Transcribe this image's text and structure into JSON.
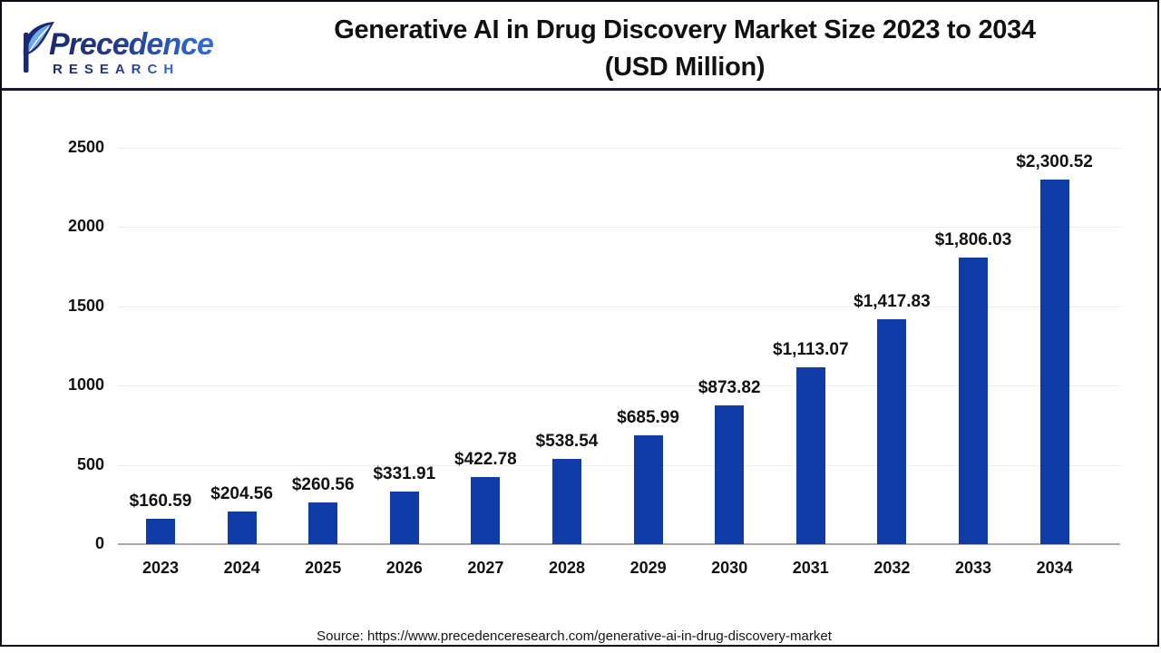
{
  "header": {
    "logo": {
      "wordmark": "Precedence",
      "subtext": "RESEARCH",
      "navy": "#1b2a6e",
      "blue": "#2f6fe0",
      "leaf_light_blue": "#6ea8f7"
    },
    "title_line1": "Generative AI in Drug Discovery Market Size 2023 to 2034",
    "title_line2": "(USD Million)"
  },
  "chart_data": {
    "type": "bar",
    "title": "Generative AI in Drug Discovery Market Size 2023 to 2034 (USD Million)",
    "categories": [
      "2023",
      "2024",
      "2025",
      "2026",
      "2027",
      "2028",
      "2029",
      "2030",
      "2031",
      "2032",
      "2033",
      "2034"
    ],
    "values": [
      160.59,
      204.56,
      260.56,
      331.91,
      422.78,
      538.54,
      685.99,
      873.82,
      1113.07,
      1417.83,
      1806.03,
      2300.52
    ],
    "data_labels": [
      "$160.59",
      "$204.56",
      "$260.56",
      "$331.91",
      "$422.78",
      "$538.54",
      "$685.99",
      "$873.82",
      "$1,113.07",
      "$1,417.83",
      "$1,806.03",
      "$2,300.52"
    ],
    "xlabel": "",
    "ylabel": "",
    "ylim": [
      0,
      2500
    ],
    "yticks": [
      0,
      500,
      1000,
      1500,
      2000,
      2500
    ],
    "grid": true,
    "legend": false,
    "bar_color": "#0f3ca6",
    "value_label_prefix": "$"
  },
  "footer": {
    "source": "Source: https://www.precedenceresearch.com/generative-ai-in-drug-discovery-market"
  },
  "colors": {
    "border": "#0c0c18",
    "header_divider": "#15153d",
    "gridline": "#ececec",
    "axis_line": "#a8a8a8",
    "text": "#111111"
  }
}
